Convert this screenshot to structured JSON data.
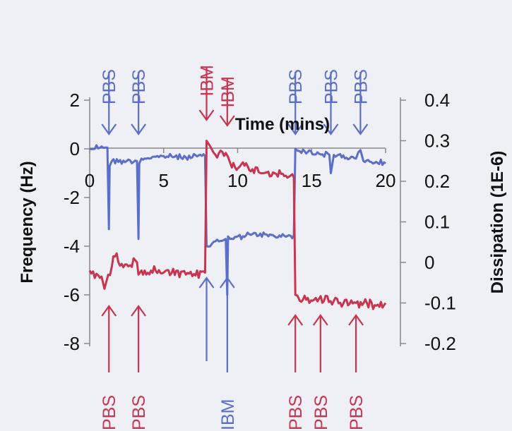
{
  "chart_data": {
    "type": "line",
    "title": "",
    "xlabel": "Time (mins)",
    "ylabel": "Frequency (Hz)",
    "y2label": "Dissipation (1E-6)",
    "xlim": [
      0,
      20
    ],
    "ylim": [
      -8,
      2
    ],
    "y2lim": [
      -0.2,
      0.4
    ],
    "x_ticks": [
      "0",
      "5",
      "10",
      "15",
      "20"
    ],
    "y_ticks": [
      "2",
      "0",
      "-2",
      "-4",
      "-6",
      "-8"
    ],
    "y2_ticks": [
      "0.4",
      "0.3",
      "0.2",
      "0.1",
      "0",
      "-0.1",
      "-0.2"
    ],
    "colors": {
      "frequency": "#5b6ec9",
      "dissipation": "#c9344e",
      "axis": "#888888"
    },
    "series": [
      {
        "axis": "left",
        "color": "#5b6ec9",
        "x": [
          0,
          0.8,
          1.2,
          1.3,
          1.35,
          1.5,
          2.5,
          3.2,
          3.3,
          3.35,
          3.5,
          5,
          6.5,
          7.8,
          7.9,
          8.5,
          9.2,
          9.3,
          9.35,
          9.5,
          11,
          12.5,
          13.8,
          13.9,
          14.2,
          15.5,
          16.2,
          16.3,
          16.5,
          18,
          18.3,
          18.5,
          20
        ],
        "y": [
          0,
          0.1,
          0.05,
          -3.3,
          -0.7,
          -0.5,
          -0.5,
          -0.5,
          -3.7,
          -0.6,
          -0.4,
          -0.3,
          -0.35,
          -0.3,
          -4,
          -3.8,
          -3.7,
          -6,
          -3.6,
          -3.7,
          -3.5,
          -3.6,
          -3.55,
          0,
          -0.1,
          -0.2,
          -0.25,
          -1,
          -0.25,
          -0.4,
          -0.05,
          -0.5,
          -0.6
        ]
      },
      {
        "axis": "right",
        "color": "#c9344e",
        "x": [
          0,
          0.8,
          1.0,
          1.5,
          1.6,
          2.5,
          3.2,
          3.3,
          3.5,
          5,
          6.5,
          7.8,
          7.9,
          8.5,
          9.2,
          9.5,
          11,
          12.5,
          13.8,
          13.9,
          14.2,
          15.5,
          16.5,
          18,
          20
        ],
        "y": [
          -0.02,
          -0.035,
          -0.065,
          -0.01,
          0.015,
          -0.005,
          0.0,
          -0.03,
          -0.02,
          -0.025,
          -0.03,
          -0.025,
          0.3,
          0.265,
          0.27,
          0.245,
          0.23,
          0.22,
          0.21,
          -0.08,
          -0.095,
          -0.09,
          -0.095,
          -0.1,
          -0.1
        ]
      }
    ],
    "annotations_top": [
      {
        "label": "PBS",
        "color": "#5b6ec9",
        "x": 1.3
      },
      {
        "label": "PBS",
        "color": "#5b6ec9",
        "x": 3.3
      },
      {
        "label": "IBM",
        "color": "#c9344e",
        "x": 7.9
      },
      {
        "label": "IBM",
        "color": "#c9344e",
        "x": 9.3
      },
      {
        "label": "PBS",
        "color": "#5b6ec9",
        "x": 13.9
      },
      {
        "label": "PBS",
        "color": "#5b6ec9",
        "x": 16.3
      },
      {
        "label": "PBS",
        "color": "#5b6ec9",
        "x": 18.3
      }
    ],
    "annotations_bottom": [
      {
        "label": "PBS",
        "color": "#c9344e",
        "x": 1.3
      },
      {
        "label": "PBS",
        "color": "#c9344e",
        "x": 3.3
      },
      {
        "label": "IBM",
        "color": "#5b6ec9",
        "x": 9.3
      },
      {
        "label": "PBS",
        "color": "#c9344e",
        "x": 13.9
      },
      {
        "label": "PBS",
        "color": "#c9344e",
        "x": 15.6
      },
      {
        "label": "PBS",
        "color": "#c9344e",
        "x": 18.0
      }
    ]
  }
}
